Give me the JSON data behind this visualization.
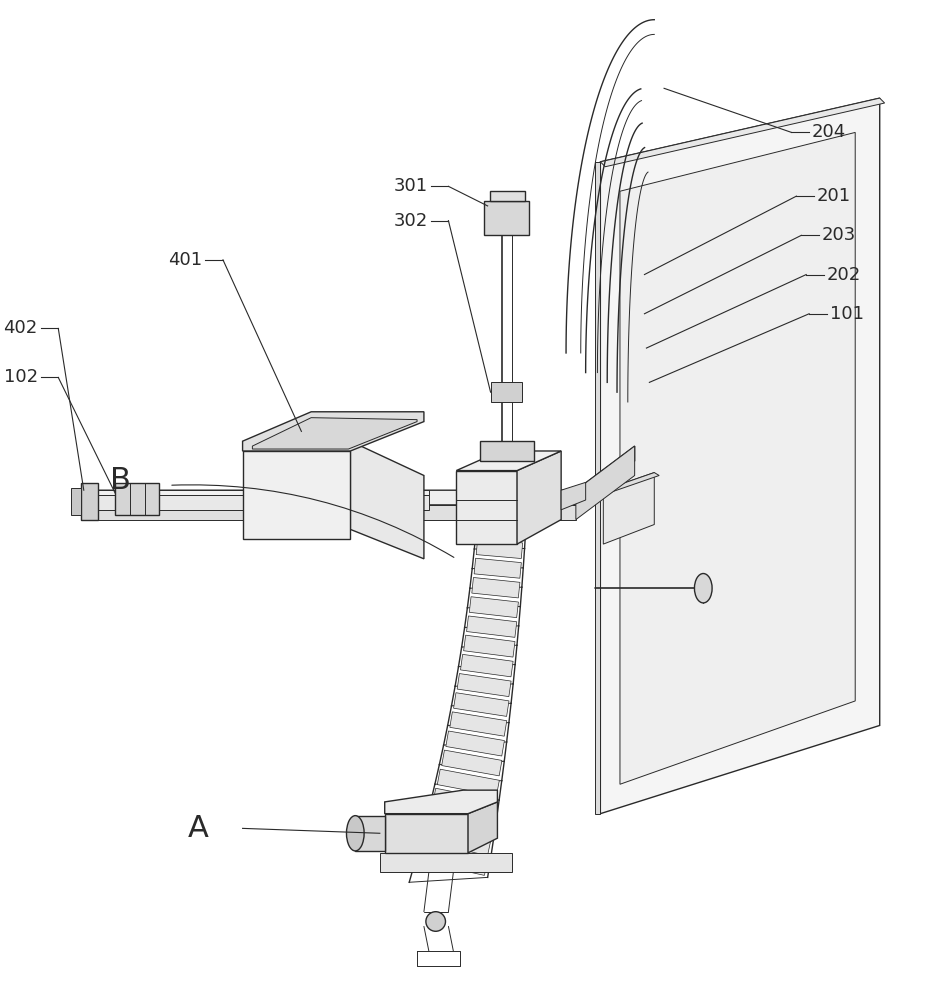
{
  "bg_color": "#ffffff",
  "line_color": "#2a2a2a",
  "fig_width": 9.36,
  "fig_height": 10.0
}
